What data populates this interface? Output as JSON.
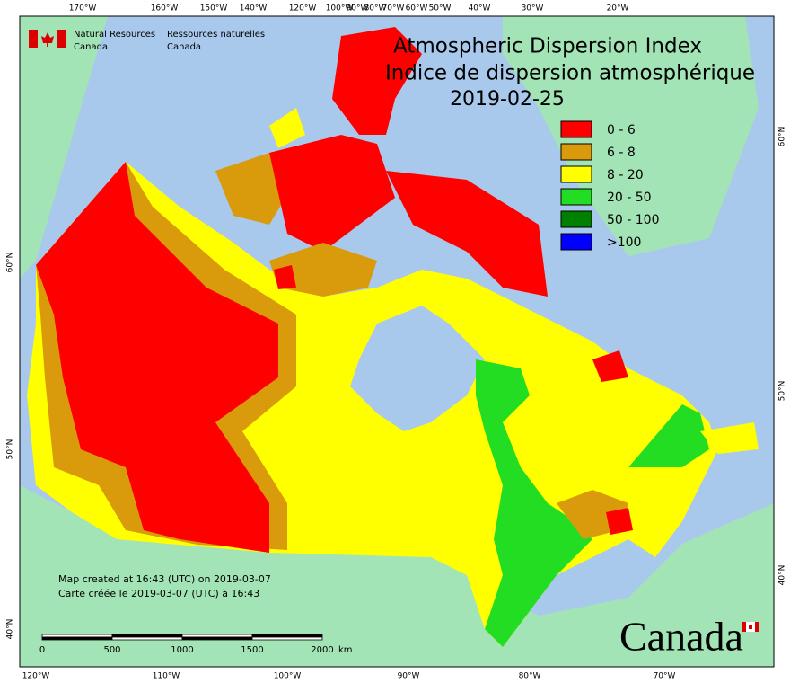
{
  "header": {
    "ministry_en": "Natural Resources",
    "country_en": "Canada",
    "ministry_fr": "Ressources naturelles",
    "country_fr": "Canada"
  },
  "title": {
    "en": "Atmospheric Dispersion Index",
    "fr": "Indice de dispersion atmosphérique",
    "date": "2019-02-25"
  },
  "legend": [
    {
      "label": "0 - 6",
      "color": "#ff0000"
    },
    {
      "label": "6 - 8",
      "color": "#d99a0b"
    },
    {
      "label": "8 - 20",
      "color": "#ffff00"
    },
    {
      "label": "20 - 50",
      "color": "#22dd22"
    },
    {
      "label": "50 - 100",
      "color": "#008000"
    },
    {
      "label": ">100",
      "color": "#0000ff"
    }
  ],
  "graticule": {
    "top": [
      "170°W",
      "160°W",
      "150°W",
      "140°W",
      "120°W",
      "100°W",
      "90°W",
      "80°W",
      "70°W",
      "60°W",
      "50°W",
      "40°W",
      "30°W",
      "20°W"
    ],
    "bottom": [
      "120°W",
      "110°W",
      "100°W",
      "90°W",
      "80°W",
      "70°W"
    ],
    "left": [
      "60°N",
      "50°N",
      "40°N"
    ],
    "right": [
      "60°N",
      "50°N",
      "40°N"
    ]
  },
  "credits": [
    "Map created at 16:43 (UTC) on 2019-03-07",
    "Carte créée le 2019-03-07 (UTC) à 16:43"
  ],
  "scale_bar": {
    "labels": [
      0,
      500,
      1000,
      1500,
      2000
    ],
    "unit": "km"
  },
  "wordmark": "Canada"
}
